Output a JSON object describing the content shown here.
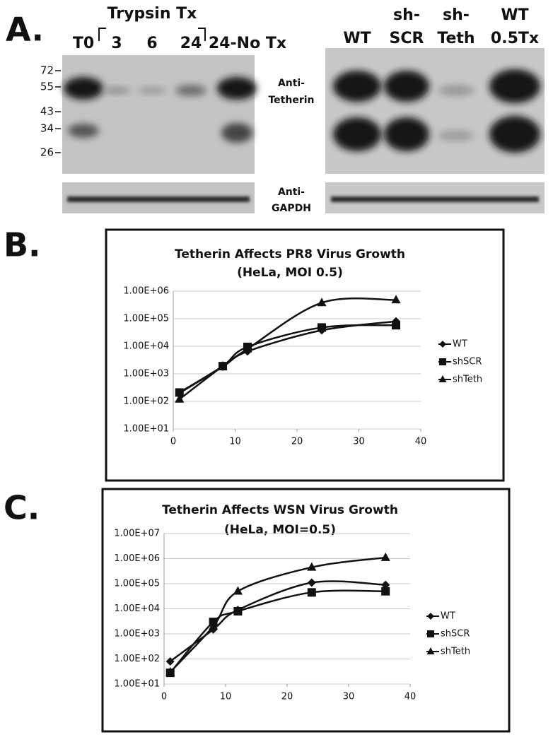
{
  "panel_a": {
    "letter": "A.",
    "group_label": "Trypsin Tx",
    "left_lanes": [
      "T0",
      "3",
      "6",
      "24",
      "24-No Tx"
    ],
    "right_lanes": [
      [
        "WT"
      ],
      [
        "sh-",
        "SCR"
      ],
      [
        "sh-",
        "Teth"
      ],
      [
        "WT",
        "0.5Tx"
      ]
    ],
    "markers": [
      72,
      55,
      43,
      34,
      26
    ],
    "probes": [
      [
        "Anti-",
        "Tetherin"
      ],
      [
        "Anti-",
        "GAPDH"
      ]
    ]
  },
  "chart_data": [
    {
      "type": "line",
      "letter": "B.",
      "title": [
        "Tetherin Affects PR8 Virus Growth",
        "(HeLa, MOI 0.5)"
      ],
      "x": [
        1,
        8,
        12,
        24,
        36
      ],
      "log_y": true,
      "grid": true,
      "xlim": [
        0,
        40
      ],
      "xticks": [
        0,
        10,
        20,
        30,
        40
      ],
      "ylim": [
        10,
        1000000
      ],
      "yticks": [
        {
          "value": 10,
          "label": "1.00E+01"
        },
        {
          "value": 100,
          "label": "1.00E+02"
        },
        {
          "value": 1000,
          "label": "1.00E+03"
        },
        {
          "value": 10000,
          "label": "1.00E+04"
        },
        {
          "value": 100000,
          "label": "1.00E+05"
        },
        {
          "value": 1000000,
          "label": "1.00E+06"
        }
      ],
      "series": [
        {
          "name": "WT",
          "color": "#111111",
          "marker": "diamond",
          "values": [
            200,
            1800,
            6500,
            38000,
            80000
          ]
        },
        {
          "name": "shSCR",
          "color": "#111111",
          "marker": "square",
          "values": [
            210,
            1900,
            9500,
            48000,
            58000
          ]
        },
        {
          "name": "shTeth",
          "color": "#111111",
          "marker": "triangle",
          "values": [
            120,
            1900,
            8000,
            380000,
            480000
          ]
        }
      ]
    },
    {
      "type": "line",
      "letter": "C.",
      "title": [
        "Tetherin Affects WSN Virus Growth",
        "(HeLa, MOI=0.5)"
      ],
      "x": [
        1,
        8,
        12,
        24,
        36
      ],
      "log_y": true,
      "grid": true,
      "xlim": [
        0,
        40
      ],
      "xticks": [
        0,
        10,
        20,
        30,
        40
      ],
      "ylim": [
        10,
        10000000
      ],
      "yticks": [
        {
          "value": 10,
          "label": "1.00E+01"
        },
        {
          "value": 100,
          "label": "1.00E+02"
        },
        {
          "value": 1000,
          "label": "1.00E+03"
        },
        {
          "value": 10000,
          "label": "1.00E+04"
        },
        {
          "value": 100000,
          "label": "1.00E+05"
        },
        {
          "value": 1000000,
          "label": "1.00E+06"
        },
        {
          "value": 10000000,
          "label": "1.00E+07"
        }
      ],
      "series": [
        {
          "name": "WT",
          "color": "#111111",
          "marker": "diamond",
          "values": [
            80,
            1500,
            9000,
            110000,
            90000
          ]
        },
        {
          "name": "shSCR",
          "color": "#111111",
          "marker": "square",
          "values": [
            28,
            3000,
            8000,
            45000,
            50000
          ]
        },
        {
          "name": "shTeth",
          "color": "#111111",
          "marker": "triangle",
          "values": [
            30,
            2000,
            50000,
            450000,
            1100000
          ]
        }
      ]
    }
  ]
}
